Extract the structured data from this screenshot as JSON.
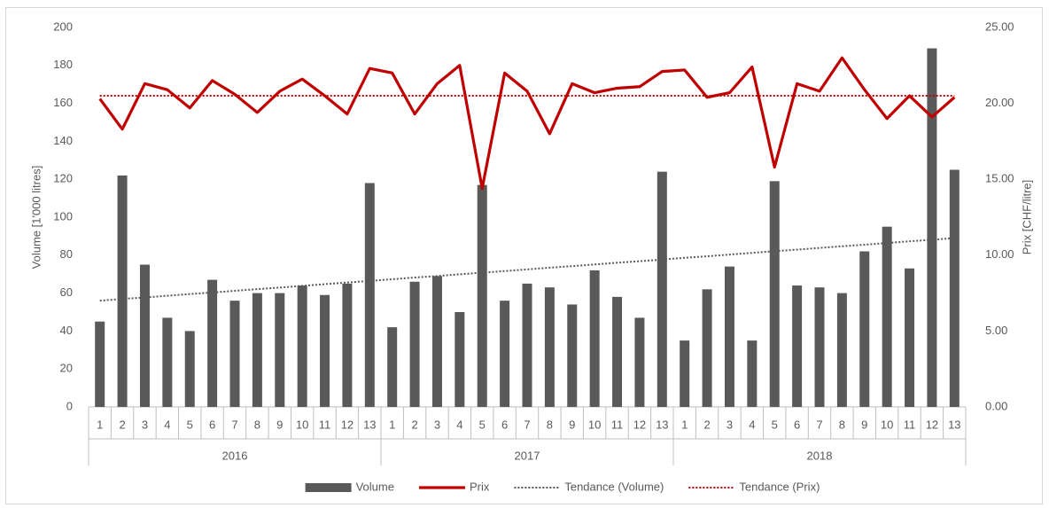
{
  "chart_data": {
    "type": "bar",
    "categories": [
      "1",
      "2",
      "3",
      "4",
      "5",
      "6",
      "7",
      "8",
      "9",
      "10",
      "11",
      "12",
      "13",
      "1",
      "2",
      "3",
      "4",
      "5",
      "6",
      "7",
      "8",
      "9",
      "10",
      "11",
      "12",
      "13",
      "1",
      "2",
      "3",
      "4",
      "5",
      "6",
      "7",
      "8",
      "9",
      "10",
      "11",
      "12",
      "13"
    ],
    "groups": [
      "2016",
      "2017",
      "2018"
    ],
    "ylabel": "Volume [1'000 litres]",
    "y2label": "Prix [CHF/litre]",
    "ylim": [
      0,
      200
    ],
    "yticks": [
      0,
      20,
      40,
      60,
      80,
      100,
      120,
      140,
      160,
      180,
      200
    ],
    "y2lim": [
      0,
      25
    ],
    "y2ticks": [
      {
        "value": 0,
        "label": "0.00"
      },
      {
        "value": 5,
        "label": "5.00"
      },
      {
        "value": 10,
        "label": "10.00"
      },
      {
        "value": 15,
        "label": "15.00"
      },
      {
        "value": 20,
        "label": "20.00"
      },
      {
        "value": 25,
        "label": "25.00"
      }
    ],
    "legend": "bottom",
    "series": [
      {
        "name": "Volume",
        "type": "bar",
        "color": "#595959",
        "values": [
          45,
          122,
          75,
          47,
          40,
          67,
          56,
          60,
          60,
          64,
          59,
          65,
          118,
          42,
          66,
          69,
          50,
          117,
          56,
          65,
          63,
          54,
          72,
          58,
          47,
          124,
          35,
          62,
          74,
          35,
          119,
          64,
          63,
          60,
          82,
          95,
          73,
          189,
          125
        ]
      },
      {
        "name": "Prix",
        "type": "line",
        "axis": "y2",
        "color": "#c00000",
        "values": [
          20.3,
          18.3,
          21.3,
          20.9,
          19.7,
          21.5,
          20.6,
          19.4,
          20.8,
          21.6,
          20.5,
          19.3,
          22.3,
          22.0,
          19.3,
          21.3,
          22.5,
          14.4,
          22.0,
          20.8,
          18.0,
          21.3,
          20.7,
          21.0,
          21.1,
          22.1,
          22.2,
          20.4,
          20.7,
          22.4,
          15.8,
          21.3,
          20.8,
          23.0,
          20.9,
          19.0,
          20.5,
          19.1,
          20.4
        ]
      },
      {
        "name": "Tendance (Volume)",
        "type": "trend",
        "color": "#595959",
        "values": [
          56.0,
          56.9,
          57.7,
          58.6,
          59.5,
          60.3,
          61.2,
          62.1,
          62.9,
          63.8,
          64.7,
          65.6,
          66.4,
          67.3,
          68.2,
          69.0,
          69.9,
          70.8,
          71.6,
          72.5,
          73.4,
          74.2,
          75.1,
          76.0,
          76.8,
          77.7,
          78.6,
          79.4,
          80.3,
          81.2,
          82.1,
          82.9,
          83.8,
          84.7,
          85.5,
          86.4,
          87.3,
          88.1,
          89.0
        ]
      },
      {
        "name": "Tendance (Prix)",
        "type": "trend",
        "axis": "y2",
        "color": "#c00000",
        "values": [
          20.5,
          20.5,
          20.5,
          20.5,
          20.5,
          20.5,
          20.5,
          20.5,
          20.5,
          20.5,
          20.5,
          20.5,
          20.5,
          20.5,
          20.5,
          20.5,
          20.5,
          20.5,
          20.5,
          20.5,
          20.5,
          20.5,
          20.5,
          20.5,
          20.5,
          20.5,
          20.5,
          20.5,
          20.5,
          20.5,
          20.5,
          20.5,
          20.5,
          20.5,
          20.5,
          20.5,
          20.5,
          20.5,
          20.5
        ]
      }
    ]
  }
}
